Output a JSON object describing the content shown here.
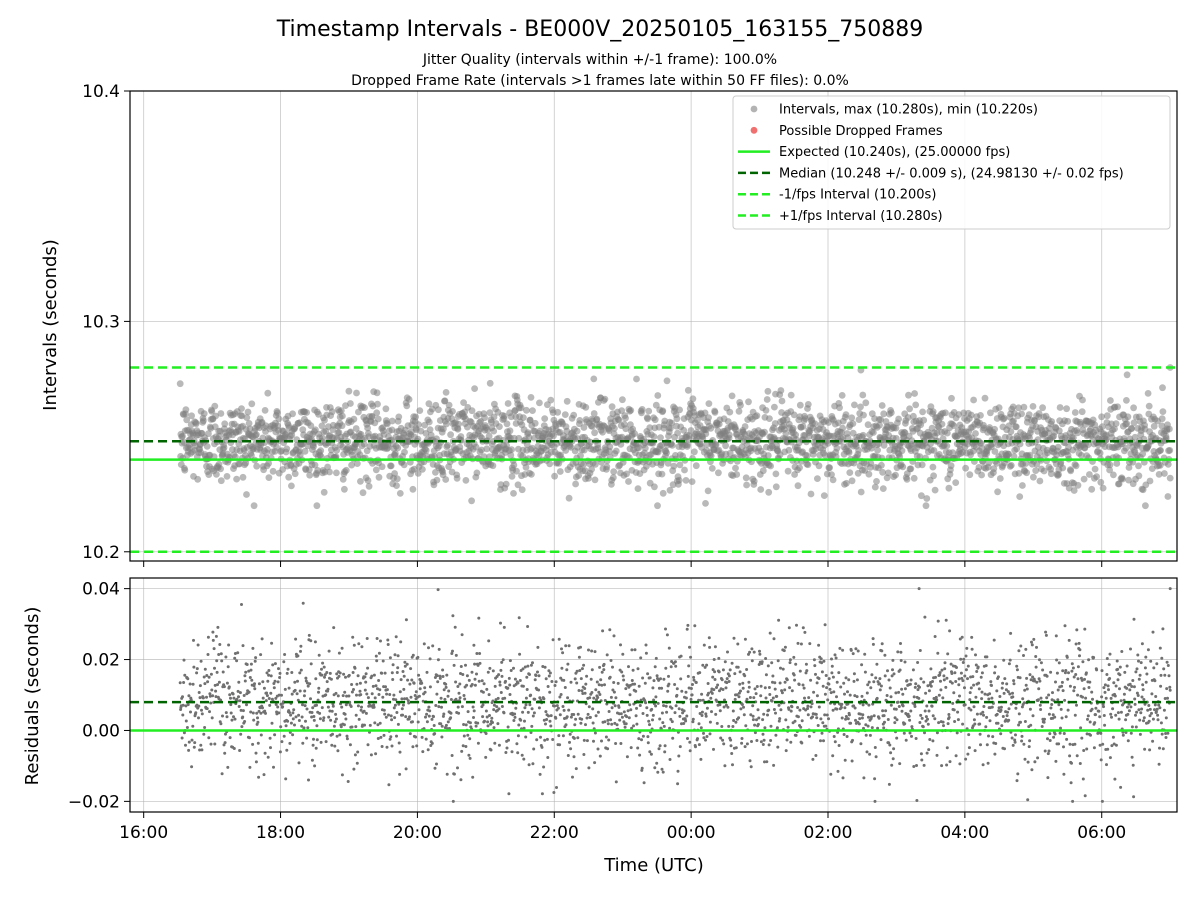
{
  "chart_data": [
    {
      "type": "scatter",
      "panel": "intervals",
      "title": "Timestamp Intervals - BE000V_20250105_163155_750889",
      "subtitles": [
        "Jitter Quality (intervals within +/-1 frame): 100.0%",
        "Dropped Frame Rate (intervals >1 frames late within 50 FF files): 0.0%"
      ],
      "ylabel": "Intervals (seconds)",
      "ylim": [
        10.196,
        10.4
      ],
      "yticks": [
        "10.2",
        "10.3",
        "10.4"
      ],
      "xrange_hours": [
        15.8,
        31.1
      ],
      "grid": true,
      "legend_position": "top-right",
      "scatter_summary": {
        "start": "16:32",
        "end": "07:00",
        "center": 10.248,
        "spread": 0.009,
        "min": 10.22,
        "max": 10.28
      },
      "series": [
        {
          "name": "Intervals, max (10.280s), min (10.220s)",
          "kind": "points",
          "color": "#808080"
        },
        {
          "name": "Possible Dropped Frames",
          "kind": "points",
          "color": "#f07070",
          "values": []
        },
        {
          "name": "Expected (10.240s), (25.00000 fps)",
          "kind": "hline",
          "y": 10.24,
          "color": "#22ee22",
          "style": "solid"
        },
        {
          "name": "Median (10.248 +/- 0.009 s), (24.98130 +/- 0.02 fps)",
          "kind": "hline",
          "y": 10.248,
          "color": "#006400",
          "style": "dashed"
        },
        {
          "name": "-1/fps Interval (10.200s)",
          "kind": "hline",
          "y": 10.2,
          "color": "#22ee22",
          "style": "dashed"
        },
        {
          "name": "+1/fps Interval (10.280s)",
          "kind": "hline",
          "y": 10.28,
          "color": "#22ee22",
          "style": "dashed"
        }
      ]
    },
    {
      "type": "scatter",
      "panel": "residuals",
      "ylabel": "Residuals (seconds)",
      "xlabel": "Time (UTC)",
      "ylim": [
        -0.023,
        0.043
      ],
      "yticks": [
        "0.04",
        "0.02",
        "0.00",
        "−0.02"
      ],
      "xticks": [
        "16:00",
        "18:00",
        "20:00",
        "22:00",
        "00:00",
        "02:00",
        "04:00",
        "06:00"
      ],
      "grid": true,
      "scatter_summary": {
        "start": "16:32",
        "end": "07:00",
        "center": 0.008,
        "spread": 0.009,
        "min": -0.02,
        "max": 0.04
      },
      "series": [
        {
          "kind": "points",
          "color": "#707070"
        },
        {
          "kind": "hline",
          "y": 0.0,
          "color": "#22ee22",
          "style": "solid"
        },
        {
          "kind": "hline",
          "y": 0.008,
          "color": "#006400",
          "style": "dashed"
        }
      ]
    }
  ]
}
